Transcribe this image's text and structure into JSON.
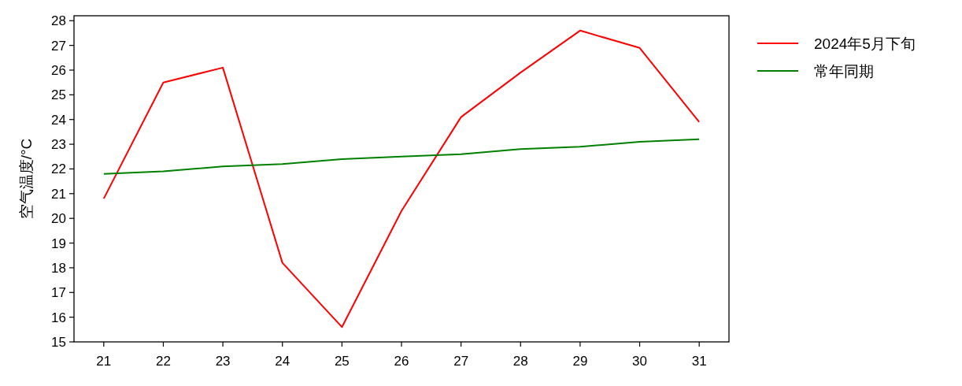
{
  "chart_data": {
    "type": "line",
    "ylabel": "空气温度/°C",
    "x": [
      21,
      22,
      23,
      24,
      25,
      26,
      27,
      28,
      29,
      30,
      31
    ],
    "xlim": [
      20.5,
      31.5
    ],
    "xticks": [
      21,
      22,
      23,
      24,
      25,
      26,
      27,
      28,
      29,
      30,
      31
    ],
    "ylim": [
      15,
      28.2
    ],
    "yticks": [
      15,
      16,
      17,
      18,
      19,
      20,
      21,
      22,
      23,
      24,
      25,
      26,
      27,
      28
    ],
    "series": [
      {
        "name": "2024年5月下旬",
        "color": "#ff0000",
        "values": [
          20.8,
          25.5,
          26.1,
          18.2,
          15.6,
          20.3,
          24.1,
          25.9,
          27.6,
          26.9,
          23.9
        ]
      },
      {
        "name": "常年同期",
        "color": "#008000",
        "values": [
          21.8,
          21.9,
          22.1,
          22.2,
          22.4,
          22.5,
          22.6,
          22.8,
          22.9,
          23.1,
          23.2
        ]
      }
    ],
    "legend": "top right"
  }
}
